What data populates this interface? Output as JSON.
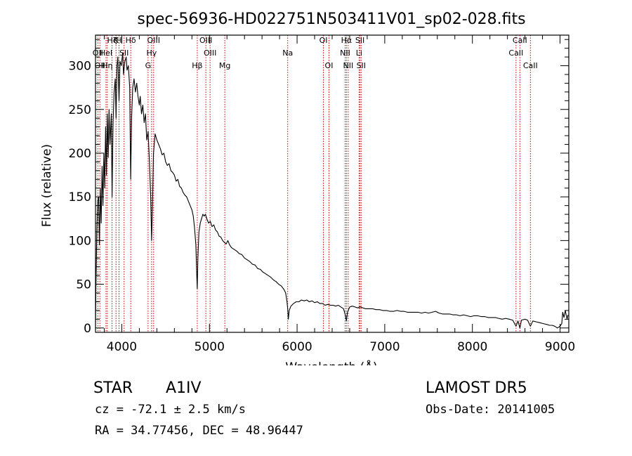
{
  "info": {
    "object_class": "STAR",
    "subclass": "A1IV",
    "survey": "LAMOST DR5",
    "cz_text": "cz = -72.1 ± 2.5 km/s",
    "obs_date": "Obs-Date: 20141005",
    "coords": "RA =  34.77456, DEC =  48.96447"
  },
  "chart_data": {
    "type": "line",
    "title": "spec-56936-HD022751N503411V01_sp02-028.fits",
    "xlabel": "Wavelength (Å)",
    "ylabel": "Flux (relative)",
    "xlim": [
      3700,
      9100
    ],
    "ylim": [
      -5,
      335
    ],
    "xticks": [
      4000,
      5000,
      6000,
      7000,
      8000,
      9000
    ],
    "yticks": [
      0,
      50,
      100,
      150,
      200,
      250,
      300
    ],
    "x_minor_step": 200,
    "y_minor_step": 10,
    "colors": {
      "spectrum": "#000000",
      "lines": "#c00000",
      "axes": "#000000"
    },
    "series": [
      {
        "points": [
          [
            3700,
            2
          ],
          [
            3705,
            45
          ],
          [
            3715,
            110
          ],
          [
            3725,
            145
          ],
          [
            3735,
            150
          ],
          [
            3745,
            95
          ],
          [
            3755,
            160
          ],
          [
            3765,
            120
          ],
          [
            3775,
            185
          ],
          [
            3785,
            140
          ],
          [
            3795,
            200
          ],
          [
            3805,
            160
          ],
          [
            3815,
            230
          ],
          [
            3825,
            175
          ],
          [
            3835,
            245
          ],
          [
            3845,
            195
          ],
          [
            3855,
            250
          ],
          [
            3865,
            210
          ],
          [
            3880,
            245
          ],
          [
            3889,
            150
          ],
          [
            3900,
            235
          ],
          [
            3912,
            270
          ],
          [
            3925,
            285
          ],
          [
            3935,
            240
          ],
          [
            3945,
            300
          ],
          [
            3955,
            310
          ],
          [
            3968,
            260
          ],
          [
            3980,
            305
          ],
          [
            3995,
            300
          ],
          [
            4010,
            315
          ],
          [
            4020,
            290
          ],
          [
            4035,
            305
          ],
          [
            4050,
            310
          ],
          [
            4060,
            295
          ],
          [
            4075,
            300
          ],
          [
            4090,
            275
          ],
          [
            4101,
            170
          ],
          [
            4112,
            240
          ],
          [
            4125,
            275
          ],
          [
            4140,
            285
          ],
          [
            4155,
            270
          ],
          [
            4170,
            280
          ],
          [
            4185,
            265
          ],
          [
            4200,
            255
          ],
          [
            4210,
            265
          ],
          [
            4225,
            245
          ],
          [
            4240,
            255
          ],
          [
            4255,
            235
          ],
          [
            4270,
            245
          ],
          [
            4285,
            215
          ],
          [
            4300,
            225
          ],
          [
            4315,
            190
          ],
          [
            4330,
            150
          ],
          [
            4340,
            100
          ],
          [
            4350,
            140
          ],
          [
            4362,
            200
          ],
          [
            4380,
            222
          ],
          [
            4400,
            215
          ],
          [
            4420,
            210
          ],
          [
            4440,
            205
          ],
          [
            4460,
            198
          ],
          [
            4480,
            200
          ],
          [
            4500,
            190
          ],
          [
            4520,
            186
          ],
          [
            4540,
            188
          ],
          [
            4560,
            180
          ],
          [
            4580,
            178
          ],
          [
            4600,
            175
          ],
          [
            4620,
            168
          ],
          [
            4640,
            170
          ],
          [
            4660,
            162
          ],
          [
            4680,
            160
          ],
          [
            4700,
            155
          ],
          [
            4720,
            152
          ],
          [
            4740,
            150
          ],
          [
            4760,
            145
          ],
          [
            4780,
            140
          ],
          [
            4800,
            135
          ],
          [
            4815,
            128
          ],
          [
            4830,
            115
          ],
          [
            4845,
            95
          ],
          [
            4855,
            60
          ],
          [
            4861,
            45
          ],
          [
            4868,
            80
          ],
          [
            4880,
            110
          ],
          [
            4895,
            120
          ],
          [
            4910,
            125
          ],
          [
            4925,
            130
          ],
          [
            4940,
            128
          ],
          [
            4955,
            130
          ],
          [
            4970,
            125
          ],
          [
            4990,
            120
          ],
          [
            5010,
            122
          ],
          [
            5030,
            116
          ],
          [
            5050,
            118
          ],
          [
            5070,
            112
          ],
          [
            5090,
            110
          ],
          [
            5110,
            105
          ],
          [
            5130,
            104
          ],
          [
            5150,
            100
          ],
          [
            5170,
            98
          ],
          [
            5190,
            96
          ],
          [
            5210,
            100
          ],
          [
            5230,
            95
          ],
          [
            5250,
            92
          ],
          [
            5280,
            90
          ],
          [
            5310,
            88
          ],
          [
            5340,
            85
          ],
          [
            5370,
            84
          ],
          [
            5400,
            80
          ],
          [
            5430,
            78
          ],
          [
            5460,
            76
          ],
          [
            5490,
            73
          ],
          [
            5520,
            72
          ],
          [
            5550,
            68
          ],
          [
            5580,
            67
          ],
          [
            5610,
            64
          ],
          [
            5640,
            62
          ],
          [
            5670,
            60
          ],
          [
            5700,
            58
          ],
          [
            5730,
            55
          ],
          [
            5760,
            53
          ],
          [
            5790,
            50
          ],
          [
            5820,
            48
          ],
          [
            5850,
            44
          ],
          [
            5870,
            40
          ],
          [
            5885,
            30
          ],
          [
            5893,
            22
          ],
          [
            5900,
            10
          ],
          [
            5910,
            20
          ],
          [
            5930,
            25
          ],
          [
            5960,
            28
          ],
          [
            5990,
            30
          ],
          [
            6020,
            30
          ],
          [
            6050,
            32
          ],
          [
            6080,
            31
          ],
          [
            6110,
            32
          ],
          [
            6140,
            30
          ],
          [
            6170,
            31
          ],
          [
            6200,
            29
          ],
          [
            6230,
            30
          ],
          [
            6260,
            28
          ],
          [
            6290,
            28
          ],
          [
            6320,
            26
          ],
          [
            6350,
            27
          ],
          [
            6380,
            26
          ],
          [
            6410,
            26
          ],
          [
            6440,
            25
          ],
          [
            6470,
            26
          ],
          [
            6500,
            24
          ],
          [
            6530,
            22
          ],
          [
            6550,
            15
          ],
          [
            6563,
            8
          ],
          [
            6575,
            18
          ],
          [
            6600,
            24
          ],
          [
            6630,
            25
          ],
          [
            6660,
            24
          ],
          [
            6690,
            23
          ],
          [
            6720,
            24
          ],
          [
            6750,
            23
          ],
          [
            6780,
            22
          ],
          [
            6820,
            22
          ],
          [
            6860,
            22
          ],
          [
            6900,
            21
          ],
          [
            6940,
            21
          ],
          [
            6980,
            20
          ],
          [
            7020,
            20
          ],
          [
            7060,
            19
          ],
          [
            7100,
            19
          ],
          [
            7140,
            20
          ],
          [
            7180,
            19
          ],
          [
            7220,
            19
          ],
          [
            7260,
            18
          ],
          [
            7300,
            18
          ],
          [
            7340,
            18
          ],
          [
            7380,
            18
          ],
          [
            7420,
            17
          ],
          [
            7460,
            18
          ],
          [
            7500,
            17
          ],
          [
            7540,
            18
          ],
          [
            7580,
            19
          ],
          [
            7620,
            17
          ],
          [
            7660,
            16
          ],
          [
            7700,
            16
          ],
          [
            7740,
            16
          ],
          [
            7780,
            15
          ],
          [
            7820,
            15
          ],
          [
            7860,
            14
          ],
          [
            7900,
            15
          ],
          [
            7940,
            14
          ],
          [
            7980,
            13
          ],
          [
            8020,
            14
          ],
          [
            8060,
            14
          ],
          [
            8100,
            13
          ],
          [
            8140,
            13
          ],
          [
            8180,
            12
          ],
          [
            8220,
            12
          ],
          [
            8260,
            12
          ],
          [
            8300,
            11
          ],
          [
            8340,
            10
          ],
          [
            8380,
            11
          ],
          [
            8420,
            10
          ],
          [
            8460,
            9
          ],
          [
            8498,
            2
          ],
          [
            8520,
            8
          ],
          [
            8542,
            0
          ],
          [
            8560,
            9
          ],
          [
            8600,
            10
          ],
          [
            8630,
            9
          ],
          [
            8662,
            2
          ],
          [
            8690,
            8
          ],
          [
            8730,
            7
          ],
          [
            8770,
            6
          ],
          [
            8810,
            5
          ],
          [
            8850,
            4
          ],
          [
            8880,
            3
          ],
          [
            8910,
            3
          ],
          [
            8940,
            2
          ],
          [
            8970,
            0
          ],
          [
            9000,
            2
          ],
          [
            9020,
            5
          ],
          [
            9030,
            18
          ],
          [
            9045,
            12
          ],
          [
            9060,
            20
          ],
          [
            9080,
            10
          ],
          [
            9090,
            15
          ]
        ]
      }
    ],
    "line_markers": [
      {
        "wave": 3727,
        "label": "OII",
        "row": 1
      },
      {
        "wave": 3750,
        "label": "OII",
        "row": 2
      },
      {
        "wave": 3820,
        "label": "HeI",
        "row": 1
      },
      {
        "wave": 3835,
        "label": "Hη",
        "row": 2
      },
      {
        "wave": 3889,
        "label": "Hζ",
        "row": 0
      },
      {
        "wave": 3934,
        "label": "K",
        "row": 0
      },
      {
        "wave": 3968,
        "label": "H",
        "row": 0
      },
      {
        "wave": 4026,
        "label": "SII",
        "row": 1
      },
      {
        "wave": 4102,
        "label": "Hδ",
        "row": 0
      },
      {
        "wave": 4300,
        "label": "G",
        "row": 2
      },
      {
        "wave": 4340,
        "label": "Hγ",
        "row": 1
      },
      {
        "wave": 4363,
        "label": "OIII",
        "row": 0
      },
      {
        "wave": 4861,
        "label": "Hβ",
        "row": 2
      },
      {
        "wave": 4959,
        "label": "OIII",
        "row": 0
      },
      {
        "wave": 5007,
        "label": "OIII",
        "row": 1
      },
      {
        "wave": 5175,
        "label": "Mg",
        "row": 2
      },
      {
        "wave": 5893,
        "label": "Na",
        "row": 1
      },
      {
        "wave": 6300,
        "label": "OI",
        "row": 0
      },
      {
        "wave": 6364,
        "label": "OI",
        "row": 2
      },
      {
        "wave": 6548,
        "label": "NII",
        "row": 1
      },
      {
        "wave": 6563,
        "label": "Hα",
        "row": 0
      },
      {
        "wave": 6583,
        "label": "NII",
        "row": 2
      },
      {
        "wave": 6707,
        "label": "Li",
        "row": 1
      },
      {
        "wave": 6717,
        "label": "SII",
        "row": 0
      },
      {
        "wave": 6731,
        "label": "SII",
        "row": 2
      },
      {
        "wave": 8498,
        "label": "CaII",
        "row": 1
      },
      {
        "wave": 8542,
        "label": "CaII",
        "row": 0
      },
      {
        "wave": 8662,
        "label": "CaII",
        "row": 2
      }
    ]
  }
}
